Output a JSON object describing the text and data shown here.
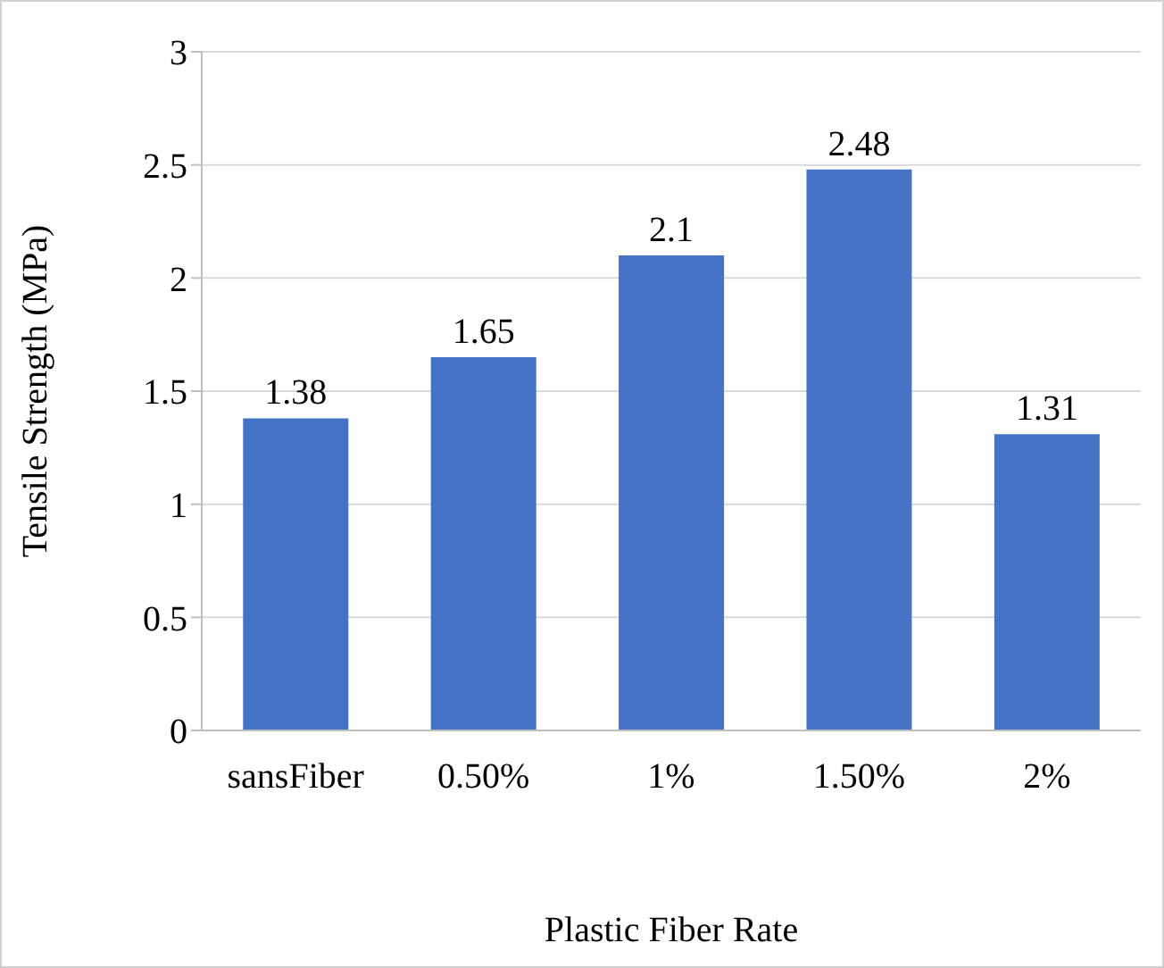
{
  "chart_data": {
    "type": "bar",
    "xlabel": "Plastic Fiber Rate",
    "ylabel": "Tensile Strength (MPa)",
    "categories": [
      "sansFiber",
      "0.50%",
      "1%",
      "1.50%",
      "2%"
    ],
    "values": [
      1.38,
      1.65,
      2.1,
      2.48,
      1.31
    ],
    "color": "#4472c4",
    "ylim": [
      0,
      3
    ],
    "yticks": [
      0,
      0.5,
      1,
      1.5,
      2,
      2.5,
      3
    ],
    "grid": "y",
    "data_labels": true
  }
}
